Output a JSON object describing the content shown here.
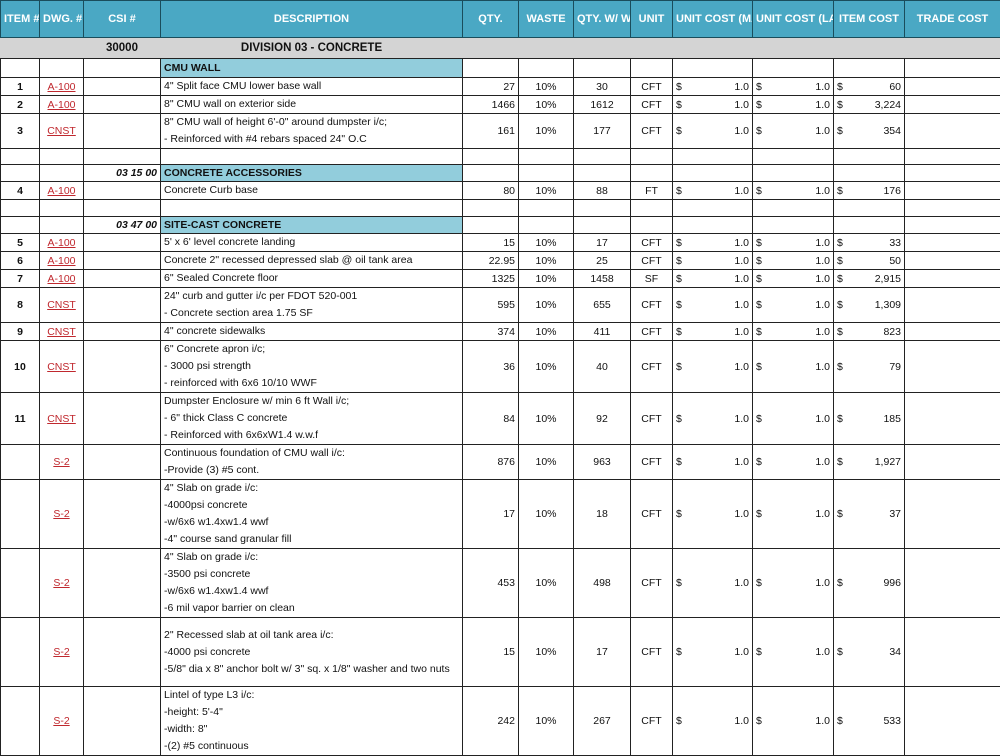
{
  "headers": [
    "ITEM #",
    "DWG. #",
    "CSI #",
    "DESCRIPTION",
    "QTY.",
    "WASTE",
    "QTY. W/ WASTE",
    "UNIT",
    "UNIT COST (MATERIAL)",
    "UNIT COST (LAB. + EQUIP.)",
    "ITEM COST",
    "TRADE COST"
  ],
  "division": {
    "code": "30000",
    "title": "DIVISION 03 - CONCRETE"
  },
  "currency": "$",
  "colors": {
    "header": "#4aa8c4",
    "section": "#92cddc",
    "division": "#d4d4d4",
    "link": "#c0282e"
  },
  "rows": [
    {
      "type": "section",
      "csi": "",
      "title": "CMU WALL"
    },
    {
      "type": "item",
      "item": "1",
      "dwg": "A-100",
      "desc": [
        "4\" Split face CMU lower base wall"
      ],
      "qty": "27",
      "waste": "10%",
      "qtyw": "30",
      "unit": "CFT",
      "mat": "1.0",
      "lab": "1.0",
      "cost": "60"
    },
    {
      "type": "item",
      "item": "2",
      "dwg": "A-100",
      "desc": [
        "8\" CMU wall on exterior side"
      ],
      "qty": "1466",
      "waste": "10%",
      "qtyw": "1612",
      "unit": "CFT",
      "mat": "1.0",
      "lab": "1.0",
      "cost": "3,224"
    },
    {
      "type": "item",
      "item": "3",
      "dwg": "CNST",
      "desc": [
        "8\" CMU wall of height 6'-0\" around dumpster i/c;",
        "- Reinforced with #4 rebars spaced 24\" O.C"
      ],
      "qty": "161",
      "waste": "10%",
      "qtyw": "177",
      "unit": "CFT",
      "mat": "1.0",
      "lab": "1.0",
      "cost": "354"
    },
    {
      "type": "blank"
    },
    {
      "type": "section",
      "csi": "03 15 00",
      "title": "CONCRETE ACCESSORIES"
    },
    {
      "type": "item",
      "item": "4",
      "dwg": "A-100",
      "desc": [
        "Concrete Curb base"
      ],
      "qty": "80",
      "waste": "10%",
      "qtyw": "88",
      "unit": "FT",
      "mat": "1.0",
      "lab": "1.0",
      "cost": "176"
    },
    {
      "type": "blank"
    },
    {
      "type": "section",
      "csi": "03 47 00",
      "title": "SITE-CAST CONCRETE"
    },
    {
      "type": "item",
      "item": "5",
      "dwg": "A-100",
      "desc": [
        "5' x 6' level concrete landing"
      ],
      "qty": "15",
      "waste": "10%",
      "qtyw": "17",
      "unit": "CFT",
      "mat": "1.0",
      "lab": "1.0",
      "cost": "33"
    },
    {
      "type": "item",
      "item": "6",
      "dwg": "A-100",
      "desc": [
        "Concrete 2\" recessed depressed slab @ oil tank area"
      ],
      "qty": "22.95",
      "waste": "10%",
      "qtyw": "25",
      "unit": "CFT",
      "mat": "1.0",
      "lab": "1.0",
      "cost": "50"
    },
    {
      "type": "item",
      "item": "7",
      "dwg": "A-100",
      "desc": [
        "6\" Sealed Concrete floor"
      ],
      "qty": "1325",
      "waste": "10%",
      "qtyw": "1458",
      "unit": "SF",
      "mat": "1.0",
      "lab": "1.0",
      "cost": "2,915"
    },
    {
      "type": "item",
      "item": "8",
      "dwg": "CNST",
      "desc": [
        "24\" curb and gutter i/c per FDOT 520-001",
        "- Concrete section area 1.75 SF"
      ],
      "qty": "595",
      "waste": "10%",
      "qtyw": "655",
      "unit": "CFT",
      "mat": "1.0",
      "lab": "1.0",
      "cost": "1,309"
    },
    {
      "type": "item",
      "item": "9",
      "dwg": "CNST",
      "desc": [
        "4\" concrete sidewalks"
      ],
      "qty": "374",
      "waste": "10%",
      "qtyw": "411",
      "unit": "CFT",
      "mat": "1.0",
      "lab": "1.0",
      "cost": "823"
    },
    {
      "type": "item",
      "item": "10",
      "dwg": "CNST",
      "desc": [
        "6\" Concrete apron i/c;",
        "- 3000 psi strength",
        "- reinforced with 6x6 10/10 WWF"
      ],
      "qty": "36",
      "waste": "10%",
      "qtyw": "40",
      "unit": "CFT",
      "mat": "1.0",
      "lab": "1.0",
      "cost": "79"
    },
    {
      "type": "item",
      "item": "11",
      "dwg": "CNST",
      "desc": [
        "Dumpster Enclosure w/ min 6 ft Wall i/c;",
        "- 6\" thick Class C concrete",
        "- Reinforced with 6x6xW1.4 w.w.f"
      ],
      "qty": "84",
      "waste": "10%",
      "qtyw": "92",
      "unit": "CFT",
      "mat": "1.0",
      "lab": "1.0",
      "cost": "185"
    },
    {
      "type": "item",
      "item": "",
      "dwg": "S-2",
      "desc": [
        "Continuous foundation of CMU wall i/c:",
        "-Provide (3) #5 cont."
      ],
      "qty": "876",
      "waste": "10%",
      "qtyw": "963",
      "unit": "CFT",
      "mat": "1.0",
      "lab": "1.0",
      "cost": "1,927"
    },
    {
      "type": "item",
      "item": "",
      "dwg": "S-2",
      "desc": [
        "4\" Slab on grade i/c:",
        "-4000psi concrete",
        "-w/6x6 w1.4xw1.4 wwf",
        "-4\" course sand granular fill"
      ],
      "qty": "17",
      "waste": "10%",
      "qtyw": "18",
      "unit": "CFT",
      "mat": "1.0",
      "lab": "1.0",
      "cost": "37"
    },
    {
      "type": "item",
      "item": "",
      "dwg": "S-2",
      "desc": [
        "4\" Slab on grade i/c:",
        "-3500 psi concrete",
        "-w/6x6 w1.4xw1.4 wwf",
        "-6 mil vapor barrier on clean"
      ],
      "qty": "453",
      "waste": "10%",
      "qtyw": "498",
      "unit": "CFT",
      "mat": "1.0",
      "lab": "1.0",
      "cost": "996"
    },
    {
      "type": "item",
      "item": "",
      "dwg": "S-2",
      "desc": [
        "2\" Recessed slab at oil tank area i/c:",
        "-4000 psi concrete",
        "-5/8\" dia x 8\" anchor bolt w/ 3\" sq. x 1/8\" washer and two nuts"
      ],
      "qty": "15",
      "waste": "10%",
      "qtyw": "17",
      "unit": "CFT",
      "mat": "1.0",
      "lab": "1.0",
      "cost": "34"
    },
    {
      "type": "item",
      "item": "",
      "dwg": "S-2",
      "desc": [
        "Lintel of type L3 i/c:",
        "-height: 5'-4\"",
        "-width: 8\"",
        "-(2) #5 continuous"
      ],
      "qty": "242",
      "waste": "10%",
      "qtyw": "267",
      "unit": "CFT",
      "mat": "1.0",
      "lab": "1.0",
      "cost": "533"
    }
  ]
}
